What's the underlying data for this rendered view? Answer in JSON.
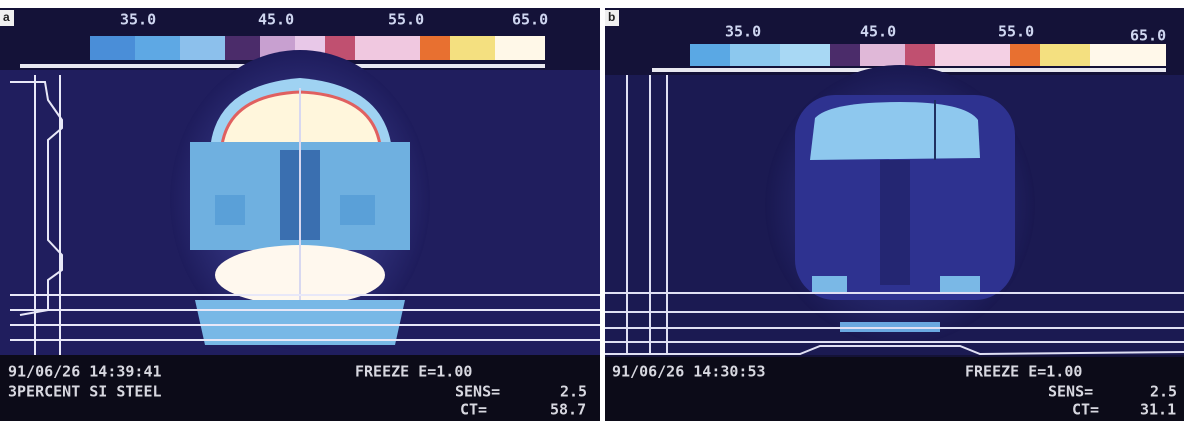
{
  "panels": [
    {
      "label": "a",
      "scale": [
        "35.0",
        "45.0",
        "55.0",
        "65.0"
      ],
      "timestamp": "91/06/26 14:39:41",
      "caption": "3PERCENT SI STEEL",
      "status": "FREEZE E=1.00",
      "sens_label": "SENS=",
      "sens": "2.5",
      "ct_label": "CT=",
      "ct": "58.7"
    },
    {
      "label": "b",
      "scale": [
        "35.0",
        "45.0",
        "55.0",
        "65.0"
      ],
      "timestamp": "91/06/26 14:30:53",
      "status": "FREEZE E=1.00",
      "sens_label": "SENS=",
      "sens": "2.5",
      "ct_label": "CT=",
      "ct": "31.1"
    }
  ]
}
